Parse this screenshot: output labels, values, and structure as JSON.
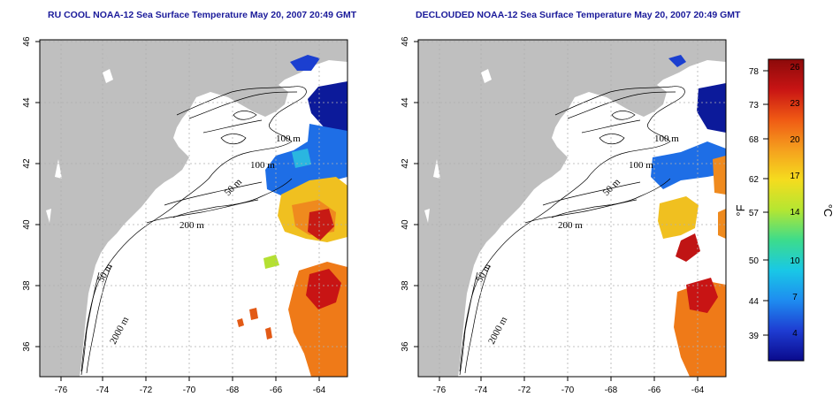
{
  "panels": [
    {
      "title": "RU COOL NOAA-12 Sea Surface Temperature May 20, 2007 20:49 GMT",
      "x_ticks": [
        "-76",
        "-74",
        "-72",
        "-70",
        "-68",
        "-66",
        "-64"
      ],
      "y_ticks": [
        "46",
        "44",
        "42",
        "40",
        "38",
        "36"
      ],
      "contour_labels": [
        "100 m",
        "100 m",
        "50 m",
        "200 m",
        "50 m",
        "2000 m"
      ]
    },
    {
      "title": "DECLOUDED NOAA-12 Sea Surface Temperature May 20, 2007 20:49 GMT",
      "x_ticks": [
        "-76",
        "-74",
        "-72",
        "-70",
        "-68",
        "-66",
        "-64"
      ],
      "y_ticks": [
        "46",
        "44",
        "42",
        "40",
        "38",
        "36"
      ],
      "contour_labels": [
        "100 m",
        "100 m",
        "50 m",
        "200 m",
        "50 m",
        "2000 m"
      ]
    }
  ],
  "colorbar": {
    "fahrenheit_ticks": [
      "78",
      "73",
      "68",
      "62",
      "57",
      "50",
      "44",
      "39"
    ],
    "celsius_ticks": [
      "26",
      "23",
      "20",
      "17",
      "14",
      "10",
      "7",
      "4"
    ],
    "fahrenheit_label": "°F",
    "celsius_label": "°C",
    "colors": [
      "#0a0a8c",
      "#1e3cd2",
      "#1e8cf0",
      "#19c8e6",
      "#3cdc8c",
      "#b4e632",
      "#f5dc1e",
      "#f5a01e",
      "#f05a14",
      "#c81414",
      "#8c0a0a"
    ]
  },
  "colors": {
    "land": "#bfbfbf",
    "ocean": "#ffffff",
    "grid": "#b0b0b0",
    "title": "#1a1a9a"
  }
}
